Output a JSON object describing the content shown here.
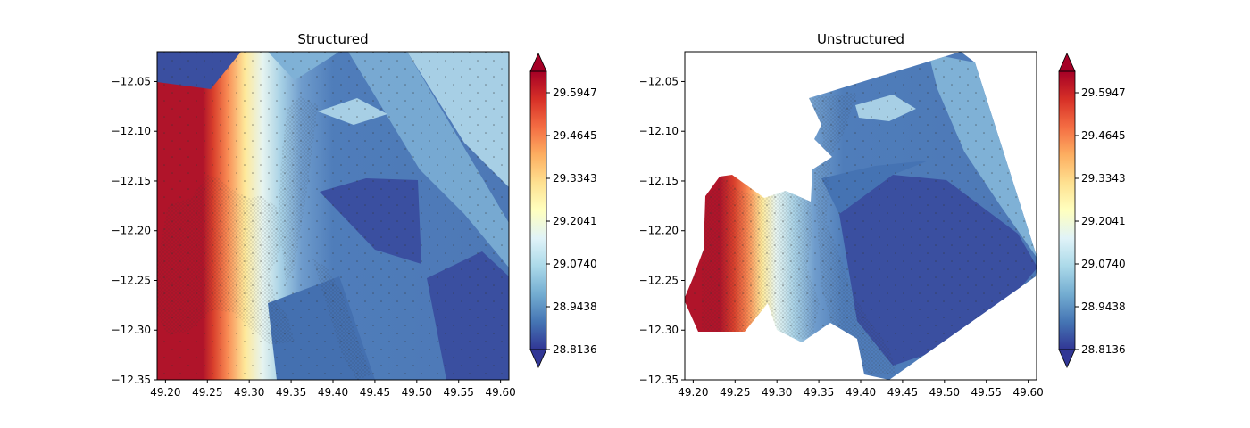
{
  "chart_data": [
    {
      "type": "heatmap",
      "title": "Structured",
      "xlabel": "",
      "ylabel": "",
      "xlim": [
        49.19,
        49.61
      ],
      "ylim": [
        -12.35,
        -12.02
      ],
      "xticks": [
        "49.20",
        "49.25",
        "49.30",
        "49.35",
        "49.40",
        "49.45",
        "49.50",
        "49.55",
        "49.60"
      ],
      "yticks": [
        "−12.05",
        "−12.10",
        "−12.15",
        "−12.20",
        "−12.25",
        "−12.30",
        "−12.35"
      ],
      "colorbar": {
        "min": 28.8136,
        "max": 29.6598,
        "extend": "both",
        "ticks": [
          "28.8136",
          "28.9438",
          "29.0740",
          "29.2041",
          "29.3343",
          "29.4645",
          "29.5947"
        ]
      }
    },
    {
      "type": "heatmap",
      "title": "Unstructured",
      "xlabel": "",
      "ylabel": "",
      "xlim": [
        49.19,
        49.61
      ],
      "ylim": [
        -12.35,
        -12.02
      ],
      "xticks": [
        "49.20",
        "49.25",
        "49.30",
        "49.35",
        "49.40",
        "49.45",
        "49.50",
        "49.55",
        "49.60"
      ],
      "yticks": [
        "−12.05",
        "−12.10",
        "−12.15",
        "−12.20",
        "−12.25",
        "−12.30",
        "−12.35"
      ],
      "colorbar": {
        "min": 28.8136,
        "max": 29.6598,
        "extend": "both",
        "ticks": [
          "28.8136",
          "28.9438",
          "29.0740",
          "29.2041",
          "29.3343",
          "29.4645",
          "29.5947"
        ]
      }
    }
  ],
  "colors": {
    "low": "#313695",
    "mid": "#ffffbf",
    "high": "#a50026",
    "mesh": "#333333"
  }
}
